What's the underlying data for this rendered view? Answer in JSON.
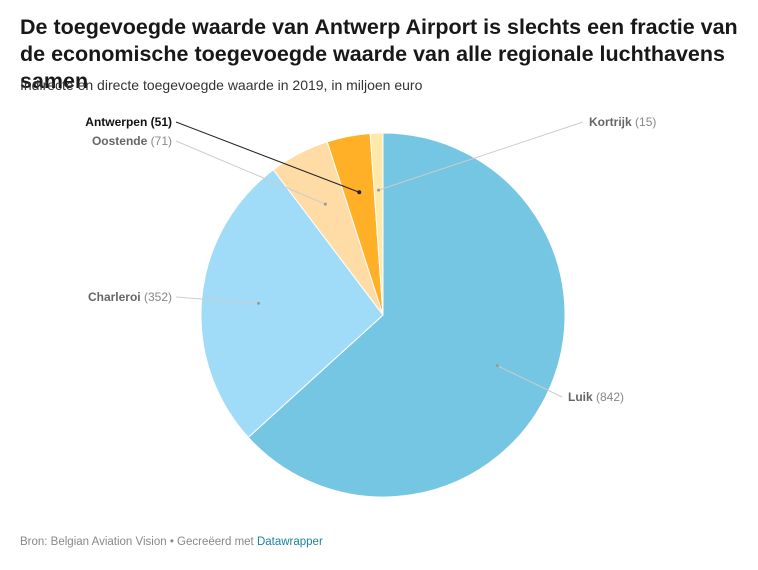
{
  "title": "De toegevoegde waarde van Antwerp Airport is slechts een fractie van de economische toegevoegde waarde van alle regionale luchthavens samen",
  "subtitle": "Indirecte en directe toegevoegde waarde in 2019, in miljoen euro",
  "footer": {
    "source": "Bron: Belgian Aviation Vision • Gecreëerd met ",
    "tool": "Datawrapper"
  },
  "chart_data": {
    "type": "pie",
    "start_angle_deg": 0,
    "direction": "clockwise",
    "slices": [
      {
        "name": "Luik",
        "value": 842,
        "label_value": "(842)",
        "color": "#75c6e2",
        "bold": false
      },
      {
        "name": "Charleroi",
        "value": 352,
        "label_value": "(352)",
        "color": "#a0dcf7",
        "bold": false
      },
      {
        "name": "Oostende",
        "value": 71,
        "label_value": "(71)",
        "color": "#ffdba5",
        "bold": false
      },
      {
        "name": "Antwerpen",
        "value": 51,
        "label_value": "(51)",
        "color": "#ffb027",
        "bold": true
      },
      {
        "name": "Kortrijk",
        "value": 15,
        "label_value": "(15)",
        "color": "#ffe8a8",
        "bold": false
      }
    ]
  }
}
